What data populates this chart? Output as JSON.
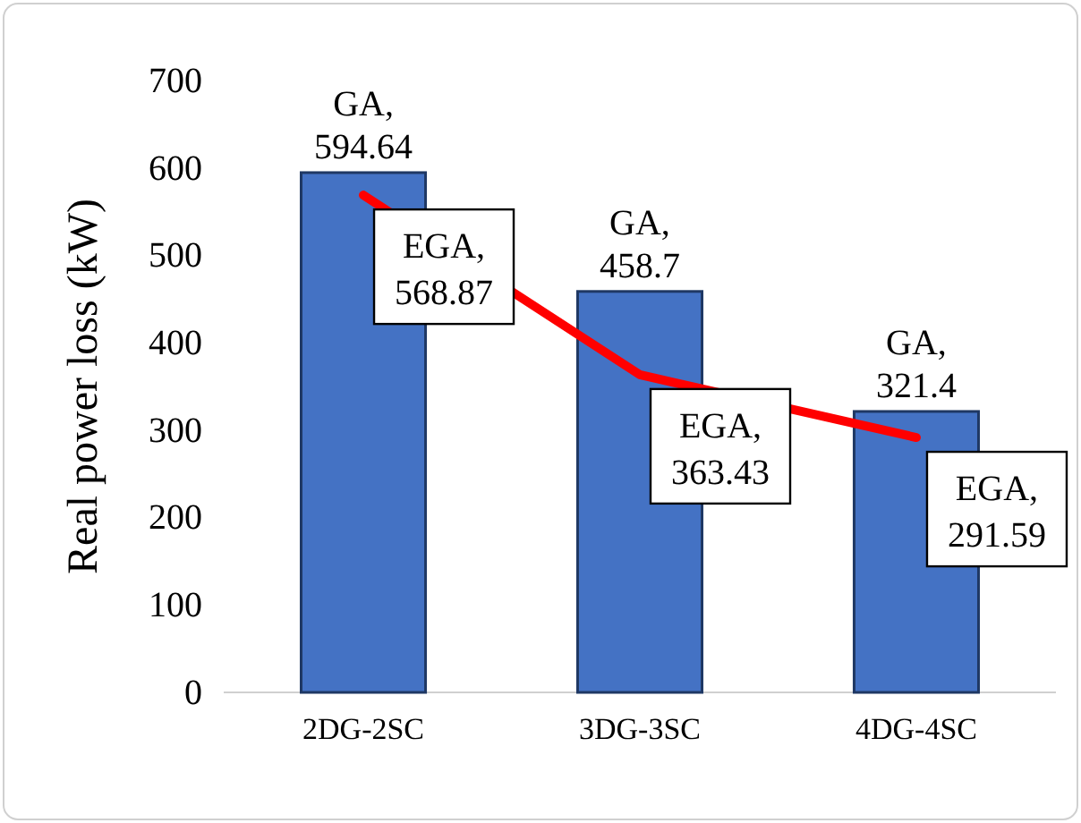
{
  "chart_data": {
    "type": "bar",
    "ylabel": "Real power loss (kW)",
    "categories": [
      "2DG-2SC",
      "3DG-3SC",
      "4DG-4SC"
    ],
    "series": [
      {
        "color": "#4472c4",
        "values": [
          594.64,
          458.7,
          321.4
        ],
        "value_labels": [
          "GA, 594.64",
          "GA, 458.7",
          "GA, 321.4"
        ]
      },
      {
        "type": "line",
        "color": "#ff0000",
        "values": [
          568.87,
          363.43,
          291.59
        ],
        "value_labels": [
          "EGA, 568.87",
          "EGA, 363.43",
          "EGA, 291.59"
        ]
      }
    ],
    "ylim": [
      0,
      700
    ],
    "yticks": [
      0,
      100,
      200,
      300,
      400,
      500,
      600,
      700
    ],
    "grid": false,
    "legend": false
  }
}
